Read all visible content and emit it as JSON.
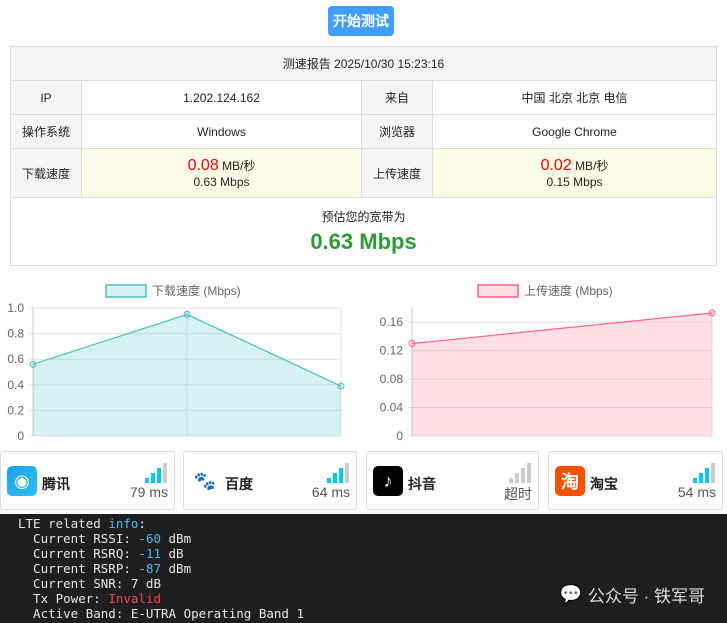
{
  "start_button": "开始测试",
  "report": {
    "title": "测速报告 2025/10/30 15:23:16",
    "ip_label": "IP",
    "ip": "1.202.124.162",
    "from_label": "来自",
    "from": "中国 北京 北京 电信",
    "os_label": "操作系统",
    "os": "Windows",
    "browser_label": "浏览器",
    "browser": "Google Chrome",
    "dl_label": "下载速度",
    "dl_value": "0.08",
    "dl_unit": "MB/秒",
    "dl_mbps": "0.63 Mbps",
    "ul_label": "上传速度",
    "ul_value": "0.02",
    "ul_unit": "MB/秒",
    "ul_mbps": "0.15 Mbps",
    "bw_label": "预估您的宽带为",
    "bw_value": "0.63 Mbps"
  },
  "chart_data": [
    {
      "type": "area",
      "legend": "下载速度 (Mbps)",
      "color": "#4bc0c0",
      "x": [
        1,
        2,
        3
      ],
      "values": [
        0.56,
        0.95,
        0.39
      ],
      "ylim": [
        0,
        1.0
      ],
      "yticks": [
        "0",
        "0.2",
        "0.4",
        "0.6",
        "0.8",
        "1.0"
      ],
      "grid": true,
      "legend_position": "top"
    },
    {
      "type": "area",
      "legend": "上传速度 (Mbps)",
      "color": "#ff6384",
      "x": [
        1,
        2
      ],
      "values": [
        0.13,
        0.173
      ],
      "ylim": [
        0,
        0.18
      ],
      "yticks": [
        "0",
        "0.04",
        "0.08",
        "0.12",
        "0.16"
      ],
      "grid": true,
      "legend_position": "top"
    }
  ],
  "sites": [
    {
      "name": "腾讯",
      "latency": "79 ms",
      "signal": 3,
      "icon": "tencent-icon"
    },
    {
      "name": "百度",
      "latency": "64 ms",
      "signal": 3,
      "icon": "baidu-icon"
    },
    {
      "name": "抖音",
      "latency": "超时",
      "signal": 0,
      "icon": "douyin-icon"
    },
    {
      "name": "淘宝",
      "latency": "54 ms",
      "signal": 3,
      "icon": "taobao-icon"
    }
  ],
  "terminal": {
    "l1a": "LTE related ",
    "l1b": "info",
    ":": ":",
    "l2a": "  Current RSSI: ",
    "l2b": "-60",
    "l2c": " dBm",
    "l3a": "  Current RSRQ: ",
    "l3b": "-11",
    "l3c": " dB",
    "l4a": "  Current RSRP: ",
    "l4b": "-87",
    "l4c": " dBm",
    "l5": "  Current SNR: 7 dB",
    "l6a": "  Tx Power: ",
    "l6b": "Invalid",
    "l7": "  Active Band: E-UTRA Operating Band 1"
  },
  "watermark": "公众号 · 铁军哥"
}
